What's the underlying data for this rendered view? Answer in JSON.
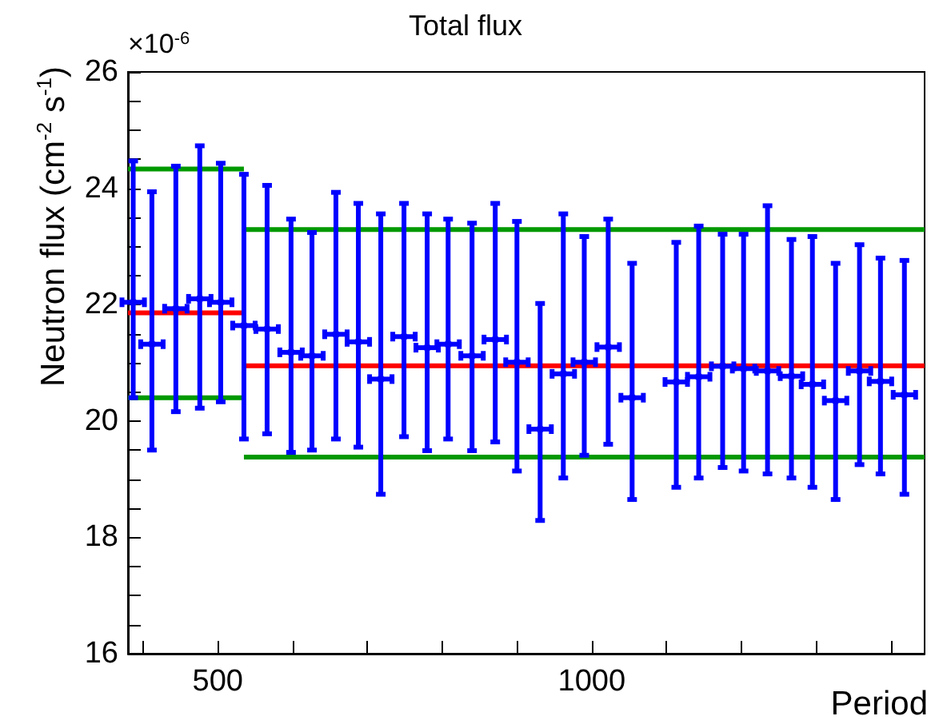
{
  "chart_data": {
    "type": "scatter",
    "title": "Total flux",
    "xlabel": "Period",
    "ylabel": "Neutron flux (cm$^{-2}$ s$^{-1}$)",
    "annotations": [
      "×10$^{-6}$"
    ],
    "xlim": [
      380,
      1445
    ],
    "ylim": [
      16,
      26
    ],
    "xticks": [
      {
        "value": 400,
        "label": null
      },
      500,
      {
        "value": 600,
        "label": null
      },
      {
        "value": 700,
        "label": null
      },
      {
        "value": 800,
        "label": null
      },
      {
        "value": 900,
        "label": null
      },
      1000,
      {
        "value": 1100,
        "label": null
      },
      {
        "value": 1200,
        "label": null
      },
      {
        "value": 1300,
        "label": null
      },
      {
        "value": 1400,
        "label": null
      }
    ],
    "yticks": [
      16,
      {
        "value": 16.5,
        "label": null
      },
      {
        "value": 17,
        "label": null
      },
      {
        "value": 17.5,
        "label": null
      },
      18,
      {
        "value": 18.5,
        "label": null
      },
      {
        "value": 19,
        "label": null
      },
      {
        "value": 19.5,
        "label": null
      },
      20,
      {
        "value": 20.5,
        "label": null
      },
      {
        "value": 21,
        "label": null
      },
      {
        "value": 21.5,
        "label": null
      },
      22,
      {
        "value": 22.5,
        "label": null
      },
      {
        "value": 23,
        "label": null
      },
      {
        "value": 23.5,
        "label": null
      },
      24,
      {
        "value": 24.5,
        "label": null
      },
      {
        "value": 25,
        "label": null
      },
      {
        "value": 25.5,
        "label": null
      },
      26
    ],
    "series": [
      {
        "color": "#0000ff",
        "x": [
          387,
          412,
          444,
          476,
          504,
          535,
          566,
          598,
          626,
          658,
          688,
          718,
          749,
          780,
          808,
          840,
          871,
          900,
          931,
          962,
          990,
          1022,
          1054,
          1113,
          1143,
          1175,
          1203,
          1235,
          1267,
          1295,
          1326,
          1358,
          1386,
          1418
        ],
        "values": [
          22.04,
          21.32,
          21.93,
          22.1,
          22.04,
          21.64,
          21.58,
          21.18,
          21.12,
          21.49,
          21.36,
          20.72,
          21.45,
          21.26,
          21.32,
          21.12,
          21.4,
          21.01,
          19.86,
          20.81,
          21.01,
          21.27,
          20.4,
          20.67,
          20.76,
          20.94,
          20.9,
          20.86,
          20.77,
          20.63,
          20.35,
          20.86,
          20.68,
          20.45
        ],
        "errors": [
          [
            20.4,
            24.47
          ],
          [
            19.5,
            23.94
          ],
          [
            20.16,
            24.38
          ],
          [
            20.22,
            24.73
          ],
          [
            20.33,
            24.43
          ],
          [
            19.69,
            24.24
          ],
          [
            19.78,
            24.05
          ],
          [
            19.46,
            23.47
          ],
          [
            19.5,
            23.24
          ],
          [
            19.69,
            23.93
          ],
          [
            19.55,
            23.74
          ],
          [
            18.74,
            23.56
          ],
          [
            19.73,
            23.74
          ],
          [
            19.49,
            23.56
          ],
          [
            19.69,
            23.47
          ],
          [
            19.49,
            23.4
          ],
          [
            19.64,
            23.74
          ],
          [
            19.14,
            23.43
          ],
          [
            18.29,
            22.02
          ],
          [
            19.02,
            23.56
          ],
          [
            19.41,
            23.17
          ],
          [
            19.6,
            23.47
          ],
          [
            18.65,
            22.71
          ],
          [
            18.86,
            23.07
          ],
          [
            19.02,
            23.35
          ],
          [
            19.2,
            23.21
          ],
          [
            19.14,
            23.21
          ],
          [
            19.09,
            23.7
          ],
          [
            19.02,
            23.12
          ],
          [
            18.86,
            23.17
          ],
          [
            18.65,
            22.71
          ],
          [
            19.25,
            23.03
          ],
          [
            19.09,
            22.8
          ],
          [
            18.74,
            22.76
          ]
        ],
        "xerrors": [
          15,
          15,
          15,
          15,
          15,
          15,
          15,
          15,
          15,
          15,
          15,
          15,
          15,
          15,
          15,
          15,
          15,
          15,
          15,
          15,
          15,
          15,
          15,
          15,
          15,
          15,
          15,
          15,
          15,
          15,
          15,
          15,
          15,
          15
        ]
      },
      {
        "type": "line",
        "color": "#ff0000",
        "x": [
          380,
          535
        ],
        "values": [
          21.86,
          21.86
        ]
      },
      {
        "type": "line",
        "color": "#009900",
        "x": [
          380,
          535
        ],
        "values": [
          24.33,
          24.33
        ]
      },
      {
        "type": "line",
        "color": "#009900",
        "x": [
          380,
          535
        ],
        "values": [
          20.4,
          20.4
        ]
      },
      {
        "type": "line",
        "color": "#ff0000",
        "x": [
          535,
          1445
        ],
        "values": [
          20.95,
          20.95
        ]
      },
      {
        "type": "line",
        "color": "#009900",
        "x": [
          535,
          1445
        ],
        "values": [
          23.29,
          23.29
        ]
      },
      {
        "type": "line",
        "color": "#009900",
        "x": [
          535,
          1445
        ],
        "values": [
          19.38,
          19.38
        ]
      }
    ]
  }
}
